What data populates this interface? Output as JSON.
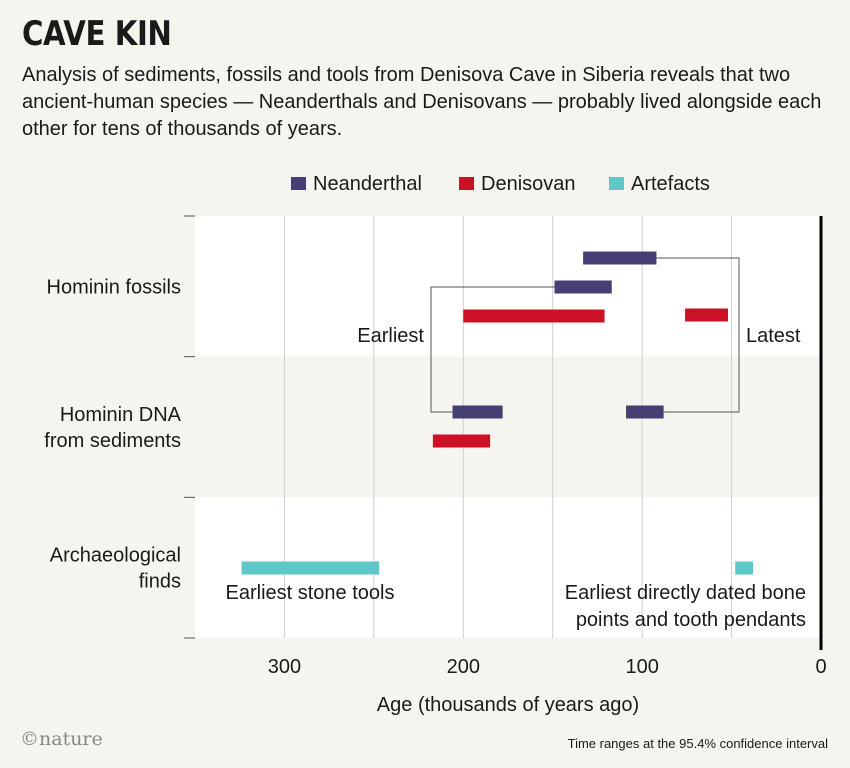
{
  "title": "CAVE KIN",
  "subtitle": "Analysis of sediments, fossils and tools from Denisova Cave in Siberia reveals that two ancient-human species — Neanderthals and Denisovans — probably lived alongside each other for tens of thousands of years.",
  "footer": {
    "logo": "©nature",
    "note": "Time ranges at the 95.4% confidence interval"
  },
  "colors": {
    "neanderthal": "#453f73",
    "denisovan": "#cc1126",
    "artefacts": "#5ec8c8",
    "band_light": "#ffffff",
    "band_shaded": "#f5f4ee",
    "grid": "#d0d0d0"
  },
  "chart_data": {
    "type": "range-bar",
    "xlabel": "Age (thousands of years ago)",
    "x_reversed": true,
    "xlim": [
      350,
      0
    ],
    "x_ticks": [
      300,
      200,
      100,
      0
    ],
    "legend": {
      "placement": "top",
      "entries": [
        {
          "name": "Neanderthal",
          "color_key": "neanderthal"
        },
        {
          "name": "Denisovan",
          "color_key": "denisovan"
        },
        {
          "name": "Artefacts",
          "color_key": "artefacts"
        }
      ]
    },
    "categories": [
      {
        "label_lines": [
          "Hominin fossils"
        ]
      },
      {
        "label_lines": [
          "Hominin DNA",
          "from sediments"
        ]
      },
      {
        "label_lines": [
          "Archaeological",
          "finds"
        ]
      }
    ],
    "ranges": [
      {
        "category": 0,
        "series": "neanderthal",
        "start": 133,
        "end": 92
      },
      {
        "category": 0,
        "series": "neanderthal",
        "start": 149,
        "end": 117
      },
      {
        "category": 0,
        "series": "denisovan",
        "start": 200,
        "end": 121
      },
      {
        "category": 0,
        "series": "denisovan",
        "start": 76,
        "end": 52
      },
      {
        "category": 1,
        "series": "neanderthal",
        "start": 206,
        "end": 178
      },
      {
        "category": 1,
        "series": "neanderthal",
        "start": 109,
        "end": 88
      },
      {
        "category": 1,
        "series": "denisovan",
        "start": 217,
        "end": 185
      },
      {
        "category": 2,
        "series": "artefacts",
        "start": 324,
        "end": 247
      },
      {
        "category": 2,
        "series": "artefacts",
        "start": 48,
        "end": 38
      }
    ],
    "annotations": {
      "earliest": "Earliest",
      "latest": "Latest",
      "stone_tools": "Earliest stone tools",
      "bone_points_lines": [
        "Earliest directly dated bone",
        "points and tooth pendants"
      ]
    }
  }
}
